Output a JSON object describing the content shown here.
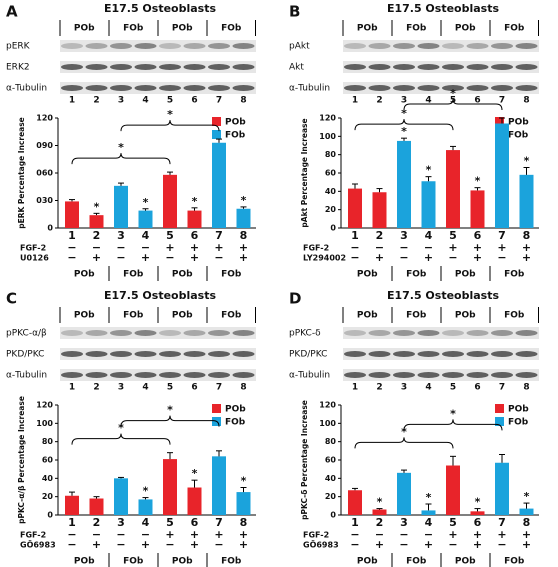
{
  "chart_data": [
    {
      "type": "bar",
      "label": "A",
      "title": "E17.5 Osteoblasts",
      "blot": {
        "groups": [
          "POb",
          "FOb",
          "POb",
          "FOb"
        ],
        "bands": [
          "pERK",
          "ERK2",
          "α-Tubulin"
        ],
        "lanes": [
          "1",
          "2",
          "3",
          "4",
          "5",
          "6",
          "7",
          "8"
        ]
      },
      "y_label": "pERK Percentage Increase",
      "categories": [
        "1",
        "2",
        "3",
        "4",
        "5",
        "6",
        "7",
        "8"
      ],
      "values": [
        29,
        14,
        46,
        19,
        58,
        19,
        93,
        21
      ],
      "errors": [
        2,
        2,
        3,
        2,
        3,
        3,
        4,
        2
      ],
      "bar_group": [
        "POb",
        "POb",
        "FOb",
        "FOb",
        "POb",
        "POb",
        "FOb",
        "FOb"
      ],
      "legend": [
        {
          "name": "POb",
          "color": "#e8242a"
        },
        {
          "name": "FOb",
          "color": "#1ba3dc"
        }
      ],
      "ylim": [
        0,
        120
      ],
      "yticks": [
        0,
        {
          "value": 30,
          "label": "030"
        },
        {
          "value": 60,
          "label": "060"
        },
        {
          "value": 90,
          "label": "090"
        },
        120
      ],
      "stars": [
        null,
        "*",
        null,
        "*",
        null,
        "*",
        null,
        "*"
      ],
      "brackets": [
        {
          "from": "1",
          "to": "5",
          "label": "*"
        },
        {
          "from": "3",
          "to": "7",
          "label": "*"
        }
      ],
      "treatments": [
        {
          "name": "FGF-2",
          "signs": [
            "−",
            "−",
            "−",
            "−",
            "+",
            "+",
            "+",
            "+"
          ]
        },
        {
          "name": "U0126",
          "signs": [
            "−",
            "+",
            "−",
            "+",
            "−",
            "+",
            "−",
            "+"
          ]
        }
      ],
      "groups": [
        "POb",
        "FOb",
        "POb",
        "FOb"
      ]
    },
    {
      "type": "bar",
      "label": "B",
      "title": "E17.5 Osteoblasts",
      "blot": {
        "groups": [
          "POb",
          "FOb",
          "POb",
          "FOb"
        ],
        "bands": [
          "pAkt",
          "Akt",
          "α-Tubulin"
        ],
        "lanes": [
          "1",
          "2",
          "3",
          "4",
          "5",
          "6",
          "7",
          "8"
        ]
      },
      "y_label": "pAkt Percentage Increase",
      "categories": [
        "1",
        "2",
        "3",
        "4",
        "5",
        "6",
        "7",
        "8"
      ],
      "values": [
        43,
        39,
        95,
        51,
        85,
        41,
        114,
        58
      ],
      "errors": [
        5,
        4,
        3,
        5,
        4,
        3,
        6,
        8
      ],
      "bar_group": [
        "POb",
        "POb",
        "FOb",
        "FOb",
        "POb",
        "POb",
        "FOb",
        "FOb"
      ],
      "legend": [
        {
          "name": "POb",
          "color": "#e8242a"
        },
        {
          "name": "FOb",
          "color": "#1ba3dc"
        }
      ],
      "ylim": [
        0,
        120
      ],
      "yticks": [
        0,
        20,
        40,
        60,
        80,
        100,
        120
      ],
      "stars": [
        null,
        null,
        "*",
        "*",
        null,
        "*",
        null,
        "*"
      ],
      "brackets": [
        {
          "from": "1",
          "to": "5",
          "label": "*"
        },
        {
          "from": "3",
          "to": "7",
          "label": "*"
        }
      ],
      "treatments": [
        {
          "name": "FGF-2",
          "signs": [
            "−",
            "−",
            "−",
            "−",
            "+",
            "+",
            "+",
            "+"
          ]
        },
        {
          "name": "LY294002",
          "signs": [
            "−",
            "+",
            "−",
            "+",
            "−",
            "+",
            "−",
            "+"
          ]
        }
      ],
      "groups": [
        "POb",
        "FOb",
        "POb",
        "FOb"
      ]
    },
    {
      "type": "bar",
      "label": "C",
      "title": "E17.5 Osteoblasts",
      "blot": {
        "groups": [
          "POb",
          "FOb",
          "POb",
          "FOb"
        ],
        "bands": [
          "pPKC-α/β",
          "PKD/PKC",
          "α-Tubulin"
        ],
        "lanes": [
          "1",
          "2",
          "3",
          "4",
          "5",
          "6",
          "7",
          "8"
        ]
      },
      "y_label": "pPKC-α/β Percentage Increase",
      "categories": [
        "1",
        "2",
        "3",
        "4",
        "5",
        "6",
        "7",
        "8"
      ],
      "values": [
        21,
        18,
        40,
        17,
        61,
        30,
        64,
        25
      ],
      "errors": [
        4,
        2,
        1,
        2,
        7,
        8,
        6,
        5
      ],
      "bar_group": [
        "POb",
        "POb",
        "FOb",
        "FOb",
        "POb",
        "POb",
        "FOb",
        "FOb"
      ],
      "legend": [
        {
          "name": "POb",
          "color": "#e8242a"
        },
        {
          "name": "FOb",
          "color": "#1ba3dc"
        }
      ],
      "ylim": [
        0,
        120
      ],
      "yticks": [
        0,
        20,
        40,
        60,
        80,
        100,
        120
      ],
      "stars": [
        null,
        null,
        null,
        "*",
        null,
        "*",
        null,
        "*"
      ],
      "brackets": [
        {
          "from": "1",
          "to": "5",
          "label": "*"
        },
        {
          "from": "3",
          "to": "7",
          "label": "*"
        }
      ],
      "treatments": [
        {
          "name": "FGF-2",
          "signs": [
            "−",
            "−",
            "−",
            "−",
            "+",
            "+",
            "+",
            "+"
          ]
        },
        {
          "name": "GÖ6983",
          "signs": [
            "−",
            "+",
            "−",
            "+",
            "−",
            "+",
            "−",
            "+"
          ]
        }
      ],
      "groups": [
        "POb",
        "FOb",
        "POb",
        "FOb"
      ]
    },
    {
      "type": "bar",
      "label": "D",
      "title": "E17.5 Osteoblasts",
      "blot": {
        "groups": [
          "POb",
          "FOb",
          "POb",
          "FOb"
        ],
        "bands": [
          "pPKC-δ",
          "PKD/PKC",
          "α-Tubulin"
        ],
        "lanes": [
          "1",
          "2",
          "3",
          "4",
          "5",
          "6",
          "7",
          "8"
        ]
      },
      "y_label": "pPKC-δ Percentage Increase",
      "categories": [
        "1",
        "2",
        "3",
        "4",
        "5",
        "6",
        "7",
        "8"
      ],
      "values": [
        27,
        6,
        46,
        5,
        54,
        4,
        57,
        7
      ],
      "errors": [
        2,
        1,
        3,
        7,
        10,
        3,
        9,
        6
      ],
      "bar_group": [
        "POb",
        "POb",
        "FOb",
        "FOb",
        "POb",
        "POb",
        "FOb",
        "FOb"
      ],
      "legend": [
        {
          "name": "POb",
          "color": "#e8242a"
        },
        {
          "name": "FOb",
          "color": "#1ba3dc"
        }
      ],
      "ylim": [
        0,
        120
      ],
      "yticks": [
        0,
        20,
        40,
        60,
        80,
        100,
        120
      ],
      "stars": [
        null,
        "*",
        null,
        "*",
        null,
        "*",
        null,
        "*"
      ],
      "brackets": [
        {
          "from": "1",
          "to": "5",
          "label": "*"
        },
        {
          "from": "3",
          "to": "7",
          "label": "*"
        }
      ],
      "treatments": [
        {
          "name": "FGF-2",
          "signs": [
            "−",
            "−",
            "−",
            "−",
            "+",
            "+",
            "+",
            "+"
          ]
        },
        {
          "name": "GÖ6983",
          "signs": [
            "−",
            "+",
            "−",
            "+",
            "−",
            "+",
            "−",
            "+"
          ]
        }
      ],
      "groups": [
        "POb",
        "FOb",
        "POb",
        "FOb"
      ]
    }
  ]
}
